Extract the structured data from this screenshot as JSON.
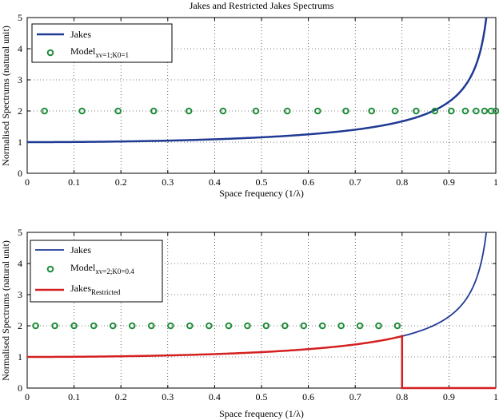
{
  "chart_data": [
    {
      "type": "line",
      "title": "Jakes and Restricted Jakes Spectrums",
      "xlabel": "Space frequency (1/λ)",
      "ylabel": "Normalised Spectrums (natural unit)",
      "xlim": [
        0,
        1
      ],
      "ylim": [
        0,
        5
      ],
      "xticks": [
        "0",
        "0.1",
        "0.2",
        "0.3",
        "0.4",
        "0.5",
        "0.6",
        "0.7",
        "0.8",
        "0.9",
        "1"
      ],
      "yticks": [
        "0",
        "1",
        "2",
        "3",
        "4",
        "5"
      ],
      "grid": "dotted",
      "legend_position": "top-left",
      "series": [
        {
          "name": "Jakes",
          "kind": "line",
          "color": "#1f3a93",
          "formula": "jakes",
          "fmax": 1,
          "ymax_visible": 5
        },
        {
          "name": "Model",
          "subscript": "xv=1;K0=1",
          "kind": "markers",
          "color": "#1e8c3a",
          "x": [
            0.037,
            0.117,
            0.194,
            0.27,
            0.345,
            0.418,
            0.488,
            0.555,
            0.62,
            0.68,
            0.735,
            0.785,
            0.83,
            0.87,
            0.905,
            0.935,
            0.958,
            0.976,
            0.99,
            1.0
          ],
          "y": [
            2,
            2,
            2,
            2,
            2,
            2,
            2,
            2,
            2,
            2,
            2,
            2,
            2,
            2,
            2,
            2,
            2,
            2,
            2,
            2
          ]
        }
      ]
    },
    {
      "type": "line",
      "title": "",
      "xlabel": "Space frequency (1/λ)",
      "ylabel": "Normalised Spectrums (natural unit)",
      "xlim": [
        0,
        1
      ],
      "ylim": [
        0,
        5
      ],
      "xticks": [
        "0",
        "0.1",
        "0.2",
        "0.3",
        "0.4",
        "0.5",
        "0.6",
        "0.7",
        "0.8",
        "0.9",
        "1"
      ],
      "yticks": [
        "0",
        "1",
        "2",
        "3",
        "4",
        "5"
      ],
      "grid": "dotted",
      "legend_position": "top-left",
      "series": [
        {
          "name": "Jakes",
          "kind": "line",
          "color": "#1f3a93",
          "formula": "jakes",
          "fmax": 1,
          "ymax_visible": 5
        },
        {
          "name": "Model",
          "subscript": "xv=2;K0=0.4",
          "kind": "markers",
          "color": "#1e8c3a",
          "x": [
            0.018,
            0.059,
            0.1,
            0.142,
            0.183,
            0.224,
            0.265,
            0.306,
            0.347,
            0.388,
            0.43,
            0.47,
            0.51,
            0.55,
            0.59,
            0.63,
            0.67,
            0.71,
            0.75,
            0.79
          ],
          "y": [
            2,
            2,
            2,
            2,
            2,
            2,
            2,
            2,
            2,
            2,
            2,
            2,
            2,
            2,
            2,
            2,
            2,
            2,
            2,
            2
          ]
        },
        {
          "name": "Jakes",
          "subscript": "Restricted",
          "kind": "line",
          "color": "#d42020",
          "formula": "restricted_jakes",
          "fmax": 1,
          "fcut": 0.8,
          "ymax_visible": 5
        }
      ]
    }
  ]
}
